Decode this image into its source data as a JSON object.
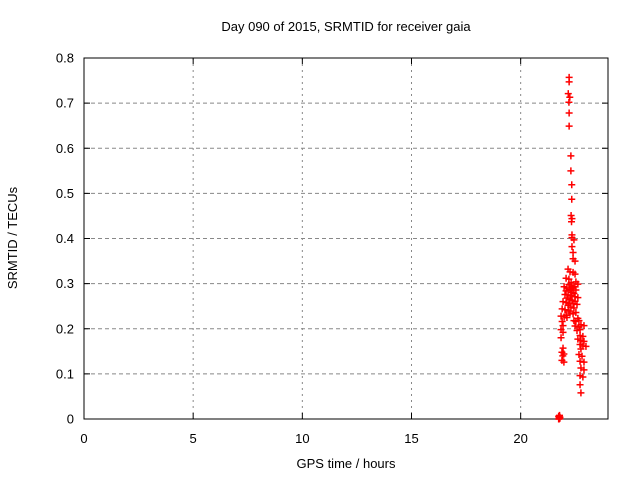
{
  "page": {
    "background": "#ffffff",
    "text_color": "#000000",
    "grid_color": "#888888",
    "border_color": "#000000"
  },
  "chart_data": {
    "type": "scatter",
    "title": "Day 090 of 2015, SRMTID for receiver gaia",
    "xlabel": "GPS time / hours",
    "ylabel": "SRMTID / TECUs",
    "xlim": [
      0,
      24
    ],
    "ylim": [
      0,
      0.8
    ],
    "xticks": [
      0,
      5,
      10,
      15,
      20
    ],
    "yticks": [
      0,
      0.1,
      0.2,
      0.3,
      0.4,
      0.5,
      0.6,
      0.7,
      0.8
    ],
    "grid": "dashed",
    "legend": "none",
    "marker": {
      "shape": "plus",
      "color": "#ff0000",
      "size": 7
    },
    "series": [
      {
        "name": "SRMTID",
        "points": [
          [
            22.22,
            0.757
          ],
          [
            22.22,
            0.747
          ],
          [
            22.18,
            0.721
          ],
          [
            22.25,
            0.713
          ],
          [
            22.21,
            0.702
          ],
          [
            22.22,
            0.678
          ],
          [
            22.22,
            0.649
          ],
          [
            22.3,
            0.583
          ],
          [
            22.3,
            0.55
          ],
          [
            22.34,
            0.519
          ],
          [
            22.34,
            0.487
          ],
          [
            22.31,
            0.451
          ],
          [
            22.35,
            0.444
          ],
          [
            22.33,
            0.437
          ],
          [
            22.35,
            0.408
          ],
          [
            22.35,
            0.402
          ],
          [
            22.44,
            0.397
          ],
          [
            22.35,
            0.382
          ],
          [
            22.4,
            0.369
          ],
          [
            22.4,
            0.355
          ],
          [
            22.49,
            0.35
          ],
          [
            22.17,
            0.332
          ],
          [
            22.26,
            0.326
          ],
          [
            22.4,
            0.325
          ],
          [
            22.49,
            0.321
          ],
          [
            22.08,
            0.312
          ],
          [
            22.21,
            0.31
          ],
          [
            22.53,
            0.304
          ],
          [
            22.31,
            0.302
          ],
          [
            22.62,
            0.299
          ],
          [
            22.21,
            0.298
          ],
          [
            22.35,
            0.295
          ],
          [
            22.44,
            0.293
          ],
          [
            21.99,
            0.293
          ],
          [
            22.12,
            0.29
          ],
          [
            22.4,
            0.29
          ],
          [
            22.26,
            0.287
          ],
          [
            22.53,
            0.286
          ],
          [
            22.31,
            0.285
          ],
          [
            22.08,
            0.284
          ],
          [
            22.35,
            0.28
          ],
          [
            22.44,
            0.278
          ],
          [
            22.03,
            0.276
          ],
          [
            22.17,
            0.275
          ],
          [
            22.3,
            0.273
          ],
          [
            22.49,
            0.271
          ],
          [
            22.62,
            0.269
          ],
          [
            22.12,
            0.268
          ],
          [
            22.26,
            0.265
          ],
          [
            22.35,
            0.263
          ],
          [
            22.49,
            0.261
          ],
          [
            21.94,
            0.26
          ],
          [
            22.08,
            0.258
          ],
          [
            22.21,
            0.256
          ],
          [
            22.4,
            0.256
          ],
          [
            22.58,
            0.254
          ],
          [
            22.17,
            0.252
          ],
          [
            22.3,
            0.248
          ],
          [
            22.44,
            0.246
          ],
          [
            21.9,
            0.244
          ],
          [
            22.03,
            0.242
          ],
          [
            22.21,
            0.239
          ],
          [
            22.26,
            0.235
          ],
          [
            22.53,
            0.236
          ],
          [
            22.4,
            0.233
          ],
          [
            22.08,
            0.23
          ],
          [
            21.85,
            0.228
          ],
          [
            21.99,
            0.226
          ],
          [
            22.12,
            0.225
          ],
          [
            22.62,
            0.223
          ],
          [
            22.44,
            0.218
          ],
          [
            22.67,
            0.218
          ],
          [
            22.53,
            0.216
          ],
          [
            21.9,
            0.216
          ],
          [
            22.76,
            0.209
          ],
          [
            21.94,
            0.207
          ],
          [
            22.9,
            0.207
          ],
          [
            22.49,
            0.206
          ],
          [
            22.67,
            0.204
          ],
          [
            21.85,
            0.198
          ],
          [
            22.72,
            0.198
          ],
          [
            22.58,
            0.196
          ],
          [
            21.94,
            0.192
          ],
          [
            22.72,
            0.185
          ],
          [
            22.85,
            0.183
          ],
          [
            21.85,
            0.18
          ],
          [
            22.62,
            0.177
          ],
          [
            22.76,
            0.174
          ],
          [
            22.9,
            0.172
          ],
          [
            22.72,
            0.165
          ],
          [
            22.85,
            0.162
          ],
          [
            22.99,
            0.161
          ],
          [
            21.94,
            0.157
          ],
          [
            22.76,
            0.155
          ],
          [
            21.89,
            0.148
          ],
          [
            21.98,
            0.144
          ],
          [
            22.67,
            0.143
          ],
          [
            21.93,
            0.14
          ],
          [
            22.81,
            0.139
          ],
          [
            21.89,
            0.13
          ],
          [
            22.72,
            0.128
          ],
          [
            21.98,
            0.126
          ],
          [
            22.9,
            0.126
          ],
          [
            22.76,
            0.113
          ],
          [
            22.9,
            0.109
          ],
          [
            22.72,
            0.096
          ],
          [
            22.85,
            0.093
          ],
          [
            22.72,
            0.076
          ],
          [
            22.76,
            0.058
          ],
          [
            21.74,
            0.006
          ],
          [
            21.76,
            0.003
          ],
          [
            21.78,
            0.008
          ],
          [
            21.8,
            0.004
          ],
          [
            21.76,
            0.0
          ],
          [
            21.79,
            0.001
          ],
          [
            21.74,
            0.0
          ],
          [
            21.77,
            0.005
          ]
        ]
      }
    ]
  }
}
